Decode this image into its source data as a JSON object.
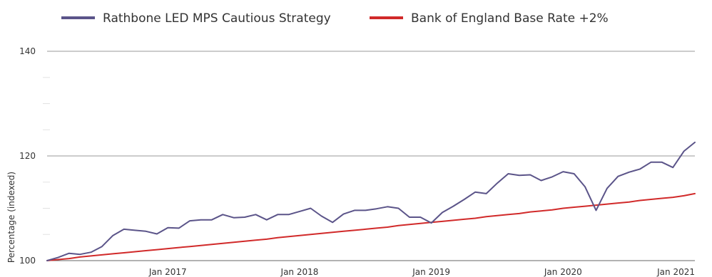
{
  "chart_data": {
    "type": "line",
    "title": "",
    "xlabel": "",
    "ylabel": "Percentage (indexed)",
    "ylim": [
      100,
      140
    ],
    "xlim": [
      "2016-02",
      "2021-01"
    ],
    "grid": true,
    "legend_position": "top-left",
    "yticks": [
      {
        "value": 100,
        "label": "100"
      },
      {
        "value": 120,
        "label": "120"
      },
      {
        "value": 140,
        "label": "140"
      }
    ],
    "xticks": [
      {
        "date": "2017-01",
        "label": "Jan 2017"
      },
      {
        "date": "2018-01",
        "label": "Jan 2018"
      },
      {
        "date": "2019-01",
        "label": "Jan 2019"
      },
      {
        "date": "2020-01",
        "label": "Jan 2020"
      },
      {
        "date": "2021-01",
        "label": "Jan 2021"
      }
    ],
    "x": [
      "2016-02",
      "2016-03",
      "2016-04",
      "2016-05",
      "2016-06",
      "2016-07",
      "2016-08",
      "2016-09",
      "2016-10",
      "2016-11",
      "2016-12",
      "2017-01",
      "2017-02",
      "2017-03",
      "2017-04",
      "2017-05",
      "2017-06",
      "2017-07",
      "2017-08",
      "2017-09",
      "2017-10",
      "2017-11",
      "2017-12",
      "2018-01",
      "2018-02",
      "2018-03",
      "2018-04",
      "2018-05",
      "2018-06",
      "2018-07",
      "2018-08",
      "2018-09",
      "2018-10",
      "2018-11",
      "2018-12",
      "2019-01",
      "2019-02",
      "2019-03",
      "2019-04",
      "2019-05",
      "2019-06",
      "2019-07",
      "2019-08",
      "2019-09",
      "2019-10",
      "2019-11",
      "2019-12",
      "2020-01",
      "2020-02",
      "2020-03",
      "2020-04",
      "2020-05",
      "2020-06",
      "2020-07",
      "2020-08",
      "2020-09",
      "2020-10",
      "2020-11",
      "2020-12",
      "2021-01"
    ],
    "series": [
      {
        "name": "Rathbone LED MPS Cautious Strategy",
        "color": "#5b5489",
        "values": [
          100.0,
          100.6,
          101.4,
          101.2,
          101.6,
          102.7,
          104.8,
          106.0,
          105.8,
          105.6,
          105.1,
          106.3,
          106.2,
          107.6,
          107.8,
          107.8,
          108.8,
          108.2,
          108.3,
          108.8,
          107.8,
          108.8,
          108.8,
          109.4,
          110.0,
          108.5,
          107.3,
          108.9,
          109.6,
          109.6,
          109.9,
          110.3,
          110.0,
          108.3,
          108.3,
          107.2,
          109.2,
          110.4,
          111.7,
          113.1,
          112.8,
          114.8,
          116.6,
          116.3,
          116.4,
          115.3,
          116.0,
          117.0,
          116.6,
          114.1,
          109.6,
          113.8,
          116.1,
          116.9,
          117.5,
          118.8,
          118.8,
          117.8,
          120.9,
          122.6
        ]
      },
      {
        "name": "Bank of England Base Rate +2%",
        "color": "#d12a2a",
        "values": [
          100.0,
          100.2,
          100.4,
          100.7,
          100.9,
          101.1,
          101.3,
          101.5,
          101.7,
          101.9,
          102.1,
          102.3,
          102.5,
          102.7,
          102.9,
          103.1,
          103.3,
          103.5,
          103.7,
          103.9,
          104.1,
          104.4,
          104.6,
          104.8,
          105.0,
          105.2,
          105.4,
          105.6,
          105.8,
          106.0,
          106.2,
          106.4,
          106.7,
          106.9,
          107.1,
          107.3,
          107.5,
          107.7,
          107.9,
          108.1,
          108.4,
          108.6,
          108.8,
          109.0,
          109.3,
          109.5,
          109.7,
          110.0,
          110.2,
          110.4,
          110.6,
          110.8,
          111.0,
          111.2,
          111.5,
          111.7,
          111.9,
          112.1,
          112.4,
          112.8
        ]
      }
    ]
  }
}
